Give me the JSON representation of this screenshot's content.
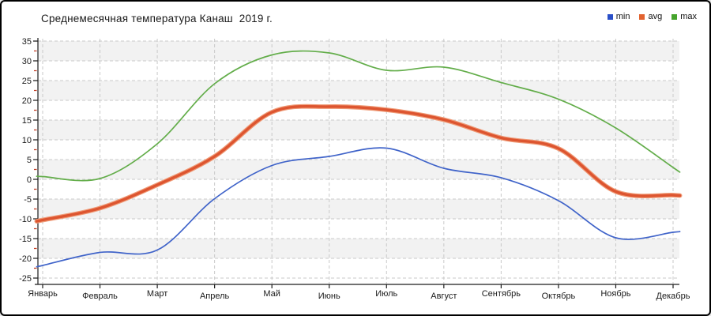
{
  "chart_data": {
    "type": "line",
    "title": "Среднемесячная температура Канаш  2019 г.",
    "xlabel": "",
    "ylabel": "",
    "categories": [
      "Январь",
      "Февраль",
      "Март",
      "Апрель",
      "Май",
      "Июнь",
      "Июль",
      "Август",
      "Сентябрь",
      "Октябрь",
      "Ноябрь",
      "Декабрь"
    ],
    "series": [
      {
        "name": "min",
        "color": "#3f63c9",
        "legend_color": "#2a4fc8",
        "width": 1.7,
        "values": [
          -21.8,
          -18.5,
          -17.9,
          -4.9,
          3.5,
          5.8,
          7.9,
          2.8,
          0.4,
          -5.4,
          -14.8,
          -13.4
        ]
      },
      {
        "name": "avg",
        "color": "#dd5530",
        "legend_color": "#e2622f",
        "width": 3.4,
        "halo_color": "#ef9a76",
        "values": [
          -10.3,
          -7.3,
          -1.4,
          5.8,
          17.0,
          18.4,
          17.6,
          15.1,
          10.5,
          7.8,
          -3.1,
          -4.0
        ]
      },
      {
        "name": "max",
        "color": "#63ad4a",
        "legend_color": "#46a42c",
        "width": 1.7,
        "values": [
          0.7,
          0.2,
          9.0,
          24.2,
          31.5,
          32.0,
          27.6,
          28.4,
          24.5,
          20.3,
          13.0,
          3.0
        ]
      }
    ],
    "ylim": [
      -25,
      35
    ],
    "ytick_step": 5,
    "ytick_minor_step": 2.5,
    "grid": "dashed",
    "legend_position": "top-right"
  },
  "styles": {
    "band_gray": "#f2f2f2",
    "band_white": "#ffffff",
    "gridline": "#c9c9c9",
    "axis": "#1c1c1c",
    "minor_tick": "#c23b22",
    "tick_label": "#1a1a1a"
  }
}
